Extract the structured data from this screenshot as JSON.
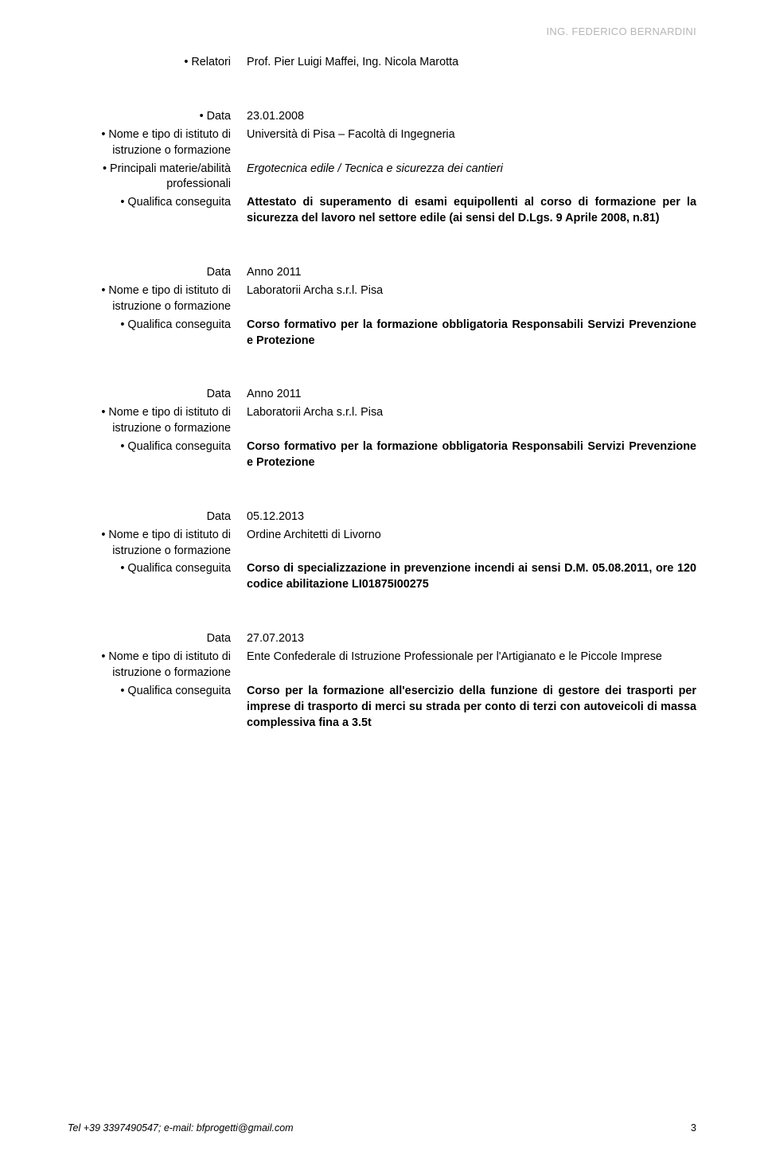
{
  "header": {
    "prefix": "ING.",
    "name": "FEDERICO BERNARDINI"
  },
  "sections": [
    {
      "rows": [
        {
          "label": "• Relatori",
          "value": "Prof. Pier Luigi Maffei, Ing. Nicola Marotta"
        }
      ]
    },
    {
      "rows": [
        {
          "label": "• Data",
          "value": "23.01.2008"
        },
        {
          "label": "• Nome e tipo di istituto di istruzione o formazione",
          "value": "Università di Pisa – Facoltà di Ingegneria"
        },
        {
          "label": "• Principali materie/abilità professionali",
          "value": "Ergotecnica edile / Tecnica e sicurezza dei cantieri",
          "italic": true
        },
        {
          "label": "• Qualifica conseguita",
          "value": "Attestato di superamento di esami equipollenti al corso di formazione per la sicurezza del lavoro nel settore edile (ai sensi del D.Lgs. 9 Aprile 2008, n.81)",
          "bold": true
        }
      ]
    },
    {
      "rows": [
        {
          "label": "Data",
          "value": "Anno 2011"
        },
        {
          "label": "• Nome e tipo di istituto di istruzione o formazione",
          "value": "Laboratorii Archa s.r.l. Pisa"
        },
        {
          "label": "• Qualifica conseguita",
          "value": "Corso formativo per la formazione obbligatoria Responsabili Servizi Prevenzione e Protezione",
          "bold": true
        }
      ]
    },
    {
      "rows": [
        {
          "label": "Data",
          "value": "Anno 2011"
        },
        {
          "label": "• Nome e tipo di istituto di istruzione o formazione",
          "value": "Laboratorii Archa s.r.l. Pisa"
        },
        {
          "label": "• Qualifica conseguita",
          "value": "Corso formativo per la formazione obbligatoria Responsabili Servizi Prevenzione e Protezione",
          "bold": true
        }
      ]
    },
    {
      "rows": [
        {
          "label": "Data",
          "value": "05.12.2013"
        },
        {
          "label": "• Nome e tipo di istituto di istruzione o formazione",
          "value": "Ordine Architetti di Livorno"
        },
        {
          "label": "• Qualifica conseguita",
          "value": "Corso di specializzazione in prevenzione incendi ai sensi D.M. 05.08.2011, ore 120 codice abilitazione LI01875I00275",
          "bold": true
        }
      ]
    },
    {
      "rows": [
        {
          "label": "Data",
          "value": "27.07.2013"
        },
        {
          "label": "• Nome e tipo di istituto di istruzione o formazione",
          "value": "Ente Confederale di Istruzione Professionale per l'Artigianato e le Piccole Imprese"
        },
        {
          "label": "• Qualifica conseguita",
          "value": "Corso per la formazione all'esercizio della funzione di gestore dei trasporti per imprese di trasporto di merci su strada per conto di terzi con autoveicoli di massa complessiva fina a 3.5t",
          "bold": true
        }
      ]
    }
  ],
  "footer": {
    "contact": "Tel +39 3397490547;  e-mail: bfprogetti@gmail.com",
    "page": "3"
  }
}
